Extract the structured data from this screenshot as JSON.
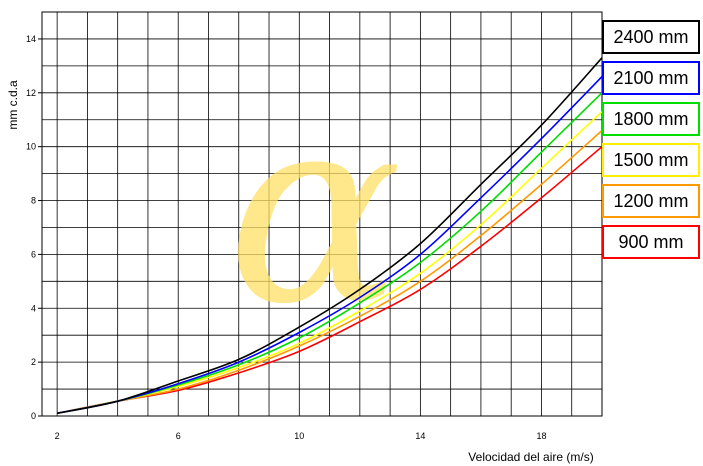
{
  "chart_data": {
    "type": "line",
    "xlabel": "Velocidad del aire (m/s)",
    "ylabel": "mm c.d.a",
    "xlim": [
      1.5,
      20
    ],
    "ylim": [
      0,
      15
    ],
    "x_ticks": [
      2,
      6,
      10,
      14,
      18
    ],
    "y_ticks": [
      0,
      2,
      4,
      6,
      8,
      10,
      12,
      14
    ],
    "grid": true,
    "legend_position": "right",
    "watermark_glyph": "α",
    "watermark_color": "#ffe066",
    "x": [
      2,
      4,
      6,
      8,
      10,
      12,
      14,
      16,
      18,
      20
    ],
    "series": [
      {
        "name": "2400 mm",
        "color": "#000000",
        "values": [
          0.1,
          0.55,
          1.3,
          2.1,
          3.3,
          4.7,
          6.4,
          8.6,
          10.8,
          13.3
        ]
      },
      {
        "name": "2100 mm",
        "color": "#0000ff",
        "values": [
          0.1,
          0.55,
          1.2,
          2.0,
          3.1,
          4.4,
          6.0,
          8.1,
          10.3,
          12.6
        ]
      },
      {
        "name": "1800 mm",
        "color": "#00dd00",
        "values": [
          0.1,
          0.55,
          1.15,
          1.9,
          2.9,
          4.2,
          5.7,
          7.6,
          9.8,
          12.0
        ]
      },
      {
        "name": "1500 mm",
        "color": "#ffff00",
        "values": [
          0.1,
          0.55,
          1.1,
          1.8,
          2.7,
          3.9,
          5.3,
          7.1,
          9.2,
          11.3
        ]
      },
      {
        "name": "1200 mm",
        "color": "#ff9900",
        "values": [
          0.1,
          0.55,
          1.0,
          1.7,
          2.6,
          3.7,
          5.0,
          6.7,
          8.6,
          10.6
        ]
      },
      {
        "name": "900 mm",
        "color": "#ff0000",
        "values": [
          0.1,
          0.55,
          0.95,
          1.6,
          2.4,
          3.5,
          4.7,
          6.3,
          8.1,
          10.0
        ]
      }
    ]
  }
}
